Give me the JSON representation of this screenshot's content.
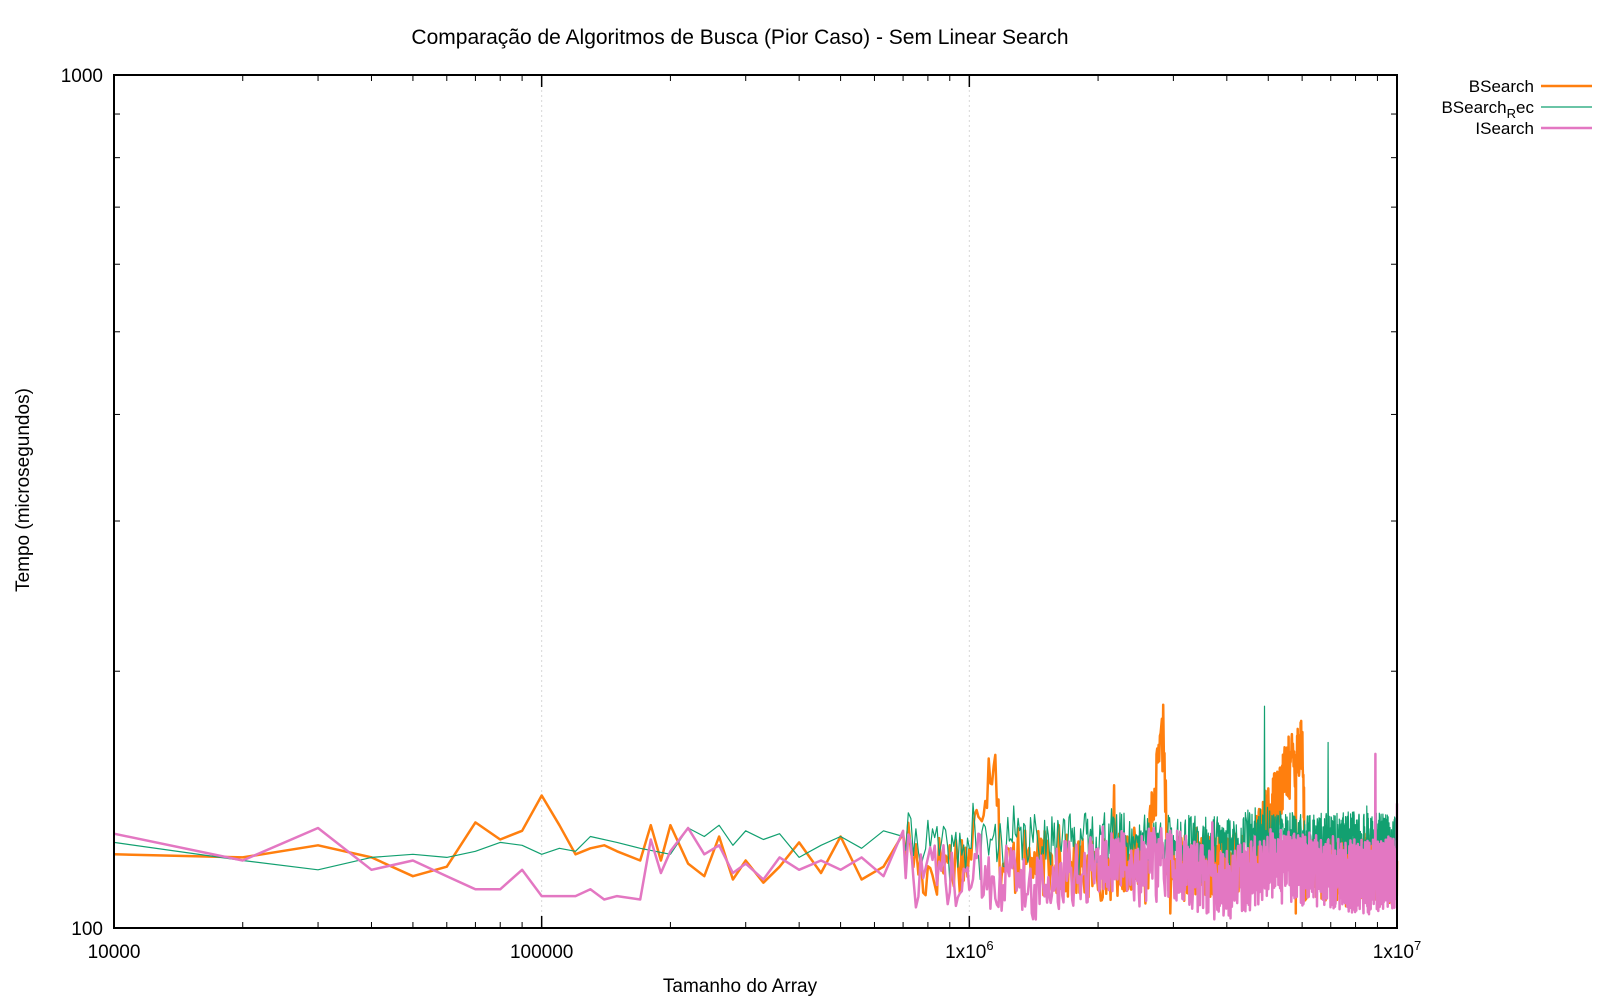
{
  "chart_data": {
    "type": "line",
    "title": "Comparação de Algoritmos de Busca (Pior Caso) - Sem Linear Search",
    "xlabel": "Tamanho do Array",
    "ylabel": "Tempo (microsegundos)",
    "x_scale": "log",
    "y_scale": "log",
    "xlim": [
      10000,
      10000000
    ],
    "ylim": [
      100,
      1000
    ],
    "grid": "vertical-dotted",
    "legend_position": "top-right-outside",
    "x_ticks": [
      {
        "value": 10000,
        "label": "10000"
      },
      {
        "value": 100000,
        "label": "100000"
      },
      {
        "value": 1000000,
        "label": "1x10",
        "sup": "6"
      },
      {
        "value": 10000000,
        "label": "1x10",
        "sup": "7"
      }
    ],
    "y_ticks": [
      {
        "value": 100,
        "label": "100"
      },
      {
        "value": 1000,
        "label": "1000"
      }
    ],
    "series": [
      {
        "name": "BSearch",
        "color": "#ff7f0e",
        "width": 2.5,
        "noise": {
          "seed": 17,
          "base": 116,
          "amp": 0.09
        },
        "points": [
          [
            10000,
            122
          ],
          [
            20000,
            121
          ],
          [
            30000,
            125
          ],
          [
            40000,
            121
          ],
          [
            50000,
            115
          ],
          [
            60000,
            118
          ],
          [
            70000,
            133
          ],
          [
            80000,
            127
          ],
          [
            90000,
            130
          ],
          [
            100000,
            143
          ],
          [
            110000,
            132
          ],
          [
            120000,
            122
          ],
          [
            130000,
            124
          ],
          [
            140000,
            125
          ],
          [
            150000,
            123
          ],
          [
            170000,
            120
          ],
          [
            180000,
            132
          ],
          [
            190000,
            120
          ],
          [
            200000,
            132
          ],
          [
            220000,
            119
          ],
          [
            240000,
            115
          ],
          [
            260000,
            128
          ],
          [
            280000,
            114
          ],
          [
            300000,
            120
          ],
          [
            330000,
            113
          ],
          [
            360000,
            118
          ],
          [
            400000,
            126
          ],
          [
            450000,
            116
          ],
          [
            500000,
            128
          ],
          [
            560000,
            114
          ],
          [
            630000,
            118
          ],
          [
            700000,
            129
          ],
          [
            780000,
            116
          ],
          [
            870000,
            120
          ],
          [
            1000000,
            121
          ],
          [
            1150000,
            164
          ],
          [
            1180000,
            118
          ],
          [
            1400000,
            120
          ],
          [
            1900000,
            117
          ],
          [
            2100000,
            118
          ],
          [
            2400000,
            121
          ],
          [
            2600000,
            117
          ],
          [
            2850000,
            170
          ],
          [
            2900000,
            118
          ],
          [
            3200000,
            118
          ],
          [
            4500000,
            118
          ],
          [
            6000000,
            166
          ],
          [
            6100000,
            118
          ],
          [
            9000000,
            118
          ],
          [
            10000000,
            118
          ]
        ],
        "spikes": [
          [
            1050000,
            135
          ],
          [
            1300000,
            131
          ],
          [
            1620000,
            132
          ],
          [
            2180000,
            147
          ],
          [
            2700000,
            134
          ],
          [
            3400000,
            131
          ],
          [
            4200000,
            129
          ],
          [
            5200000,
            131
          ],
          [
            7100000,
            128
          ],
          [
            8400000,
            129
          ]
        ],
        "dips": [
          [
            2950000,
            104
          ],
          [
            5800000,
            104
          ],
          [
            7600000,
            106
          ],
          [
            9600000,
            107
          ]
        ]
      },
      {
        "name": "BSearchRec",
        "legend_base": "BSearch",
        "legend_sub": "R",
        "legend_tail": "ec",
        "color": "#12a070",
        "width": 1.2,
        "noise": {
          "seed": 41,
          "base": 124,
          "amp": 0.07
        },
        "points": [
          [
            10000,
            126
          ],
          [
            20000,
            120
          ],
          [
            30000,
            117
          ],
          [
            40000,
            121
          ],
          [
            50000,
            122
          ],
          [
            60000,
            121
          ],
          [
            70000,
            123
          ],
          [
            80000,
            126
          ],
          [
            90000,
            125
          ],
          [
            100000,
            122
          ],
          [
            110000,
            124
          ],
          [
            120000,
            123
          ],
          [
            130000,
            128
          ],
          [
            150000,
            126
          ],
          [
            170000,
            124
          ],
          [
            200000,
            122
          ],
          [
            220000,
            131
          ],
          [
            240000,
            128
          ],
          [
            260000,
            132
          ],
          [
            280000,
            125
          ],
          [
            300000,
            130
          ],
          [
            330000,
            127
          ],
          [
            360000,
            129
          ],
          [
            400000,
            121
          ],
          [
            450000,
            125
          ],
          [
            500000,
            128
          ],
          [
            560000,
            124
          ],
          [
            630000,
            130
          ],
          [
            700000,
            128
          ],
          [
            800000,
            126
          ],
          [
            900000,
            122
          ],
          [
            1000000,
            125
          ],
          [
            1100000,
            126
          ],
          [
            1400000,
            127
          ],
          [
            2000000,
            128
          ],
          [
            3000000,
            127
          ],
          [
            4000000,
            126
          ],
          [
            4800000,
            130
          ],
          [
            6000000,
            127
          ],
          [
            8000000,
            128
          ],
          [
            10000000,
            127
          ]
        ],
        "spikes": [
          [
            1020000,
            140
          ],
          [
            1270000,
            139
          ],
          [
            1560000,
            135
          ],
          [
            2150000,
            138
          ],
          [
            3800000,
            135
          ],
          [
            4900000,
            182
          ],
          [
            5700000,
            136
          ],
          [
            6900000,
            165
          ],
          [
            8500000,
            139
          ],
          [
            10000000,
            150
          ]
        ],
        "dips": [
          [
            1060000,
            114
          ],
          [
            1800000,
            114
          ],
          [
            3500000,
            113
          ]
        ]
      },
      {
        "name": "ISearch",
        "color": "#e377c2",
        "width": 2.5,
        "noise": {
          "seed": 73,
          "base": 117,
          "amp": 0.1
        },
        "points": [
          [
            10000,
            129
          ],
          [
            20000,
            120
          ],
          [
            30000,
            131
          ],
          [
            40000,
            117
          ],
          [
            50000,
            120
          ],
          [
            60000,
            115
          ],
          [
            70000,
            111
          ],
          [
            80000,
            111
          ],
          [
            90000,
            117
          ],
          [
            100000,
            109
          ],
          [
            110000,
            109
          ],
          [
            120000,
            109
          ],
          [
            130000,
            111
          ],
          [
            140000,
            108
          ],
          [
            150000,
            109
          ],
          [
            170000,
            108
          ],
          [
            180000,
            127
          ],
          [
            190000,
            116
          ],
          [
            200000,
            123
          ],
          [
            220000,
            131
          ],
          [
            240000,
            122
          ],
          [
            260000,
            125
          ],
          [
            280000,
            116
          ],
          [
            300000,
            119
          ],
          [
            330000,
            114
          ],
          [
            360000,
            121
          ],
          [
            400000,
            117
          ],
          [
            450000,
            120
          ],
          [
            500000,
            117
          ],
          [
            560000,
            121
          ],
          [
            630000,
            115
          ],
          [
            700000,
            121
          ],
          [
            780000,
            114
          ],
          [
            870000,
            116
          ],
          [
            950000,
            108
          ],
          [
            1000000,
            118
          ],
          [
            1500000,
            112
          ],
          [
            2000000,
            120
          ],
          [
            3000000,
            119
          ],
          [
            4000000,
            112
          ],
          [
            5000000,
            119
          ],
          [
            7000000,
            117
          ],
          [
            8500000,
            115
          ],
          [
            10000000,
            117
          ]
        ],
        "spikes": [
          [
            680000,
            130
          ],
          [
            2700000,
            131
          ],
          [
            3700000,
            133
          ],
          [
            5500000,
            128
          ],
          [
            8900000,
            160
          ],
          [
            10000000,
            140
          ]
        ],
        "dips": [
          [
            1550000,
            107
          ],
          [
            2500000,
            106
          ],
          [
            3800000,
            105
          ],
          [
            6500000,
            106
          ],
          [
            9200000,
            108
          ]
        ]
      }
    ]
  }
}
